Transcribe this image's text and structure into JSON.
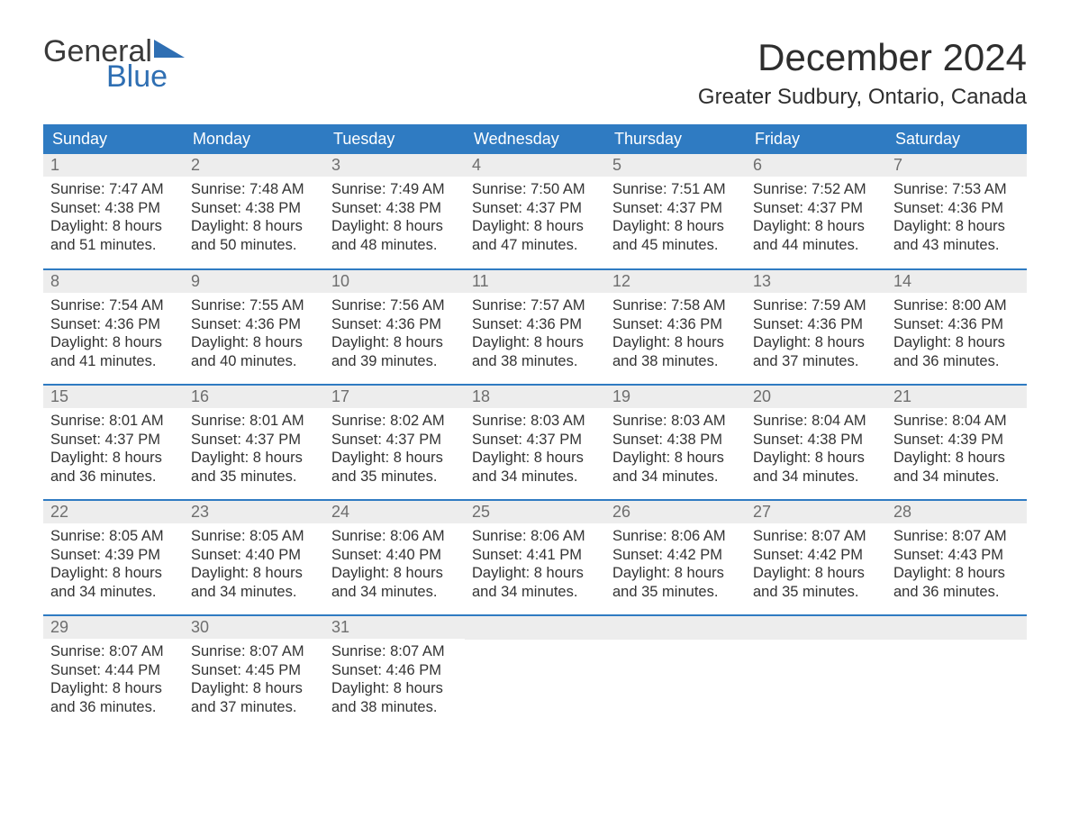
{
  "brand": {
    "word1": "General",
    "word2": "Blue",
    "accent_color": "#2f6fb3"
  },
  "title": "December 2024",
  "location": "Greater Sudbury, Ontario, Canada",
  "colors": {
    "header_bg": "#2f7bc2",
    "header_text": "#ffffff",
    "daynum_bg": "#ededed",
    "daynum_text": "#6e6e6e",
    "body_text": "#333333",
    "rule": "#2f7bc2"
  },
  "day_headers": [
    "Sunday",
    "Monday",
    "Tuesday",
    "Wednesday",
    "Thursday",
    "Friday",
    "Saturday"
  ],
  "weeks": [
    [
      {
        "n": "1",
        "sunrise": "Sunrise: 7:47 AM",
        "sunset": "Sunset: 4:38 PM",
        "d1": "Daylight: 8 hours",
        "d2": "and 51 minutes."
      },
      {
        "n": "2",
        "sunrise": "Sunrise: 7:48 AM",
        "sunset": "Sunset: 4:38 PM",
        "d1": "Daylight: 8 hours",
        "d2": "and 50 minutes."
      },
      {
        "n": "3",
        "sunrise": "Sunrise: 7:49 AM",
        "sunset": "Sunset: 4:38 PM",
        "d1": "Daylight: 8 hours",
        "d2": "and 48 minutes."
      },
      {
        "n": "4",
        "sunrise": "Sunrise: 7:50 AM",
        "sunset": "Sunset: 4:37 PM",
        "d1": "Daylight: 8 hours",
        "d2": "and 47 minutes."
      },
      {
        "n": "5",
        "sunrise": "Sunrise: 7:51 AM",
        "sunset": "Sunset: 4:37 PM",
        "d1": "Daylight: 8 hours",
        "d2": "and 45 minutes."
      },
      {
        "n": "6",
        "sunrise": "Sunrise: 7:52 AM",
        "sunset": "Sunset: 4:37 PM",
        "d1": "Daylight: 8 hours",
        "d2": "and 44 minutes."
      },
      {
        "n": "7",
        "sunrise": "Sunrise: 7:53 AM",
        "sunset": "Sunset: 4:36 PM",
        "d1": "Daylight: 8 hours",
        "d2": "and 43 minutes."
      }
    ],
    [
      {
        "n": "8",
        "sunrise": "Sunrise: 7:54 AM",
        "sunset": "Sunset: 4:36 PM",
        "d1": "Daylight: 8 hours",
        "d2": "and 41 minutes."
      },
      {
        "n": "9",
        "sunrise": "Sunrise: 7:55 AM",
        "sunset": "Sunset: 4:36 PM",
        "d1": "Daylight: 8 hours",
        "d2": "and 40 minutes."
      },
      {
        "n": "10",
        "sunrise": "Sunrise: 7:56 AM",
        "sunset": "Sunset: 4:36 PM",
        "d1": "Daylight: 8 hours",
        "d2": "and 39 minutes."
      },
      {
        "n": "11",
        "sunrise": "Sunrise: 7:57 AM",
        "sunset": "Sunset: 4:36 PM",
        "d1": "Daylight: 8 hours",
        "d2": "and 38 minutes."
      },
      {
        "n": "12",
        "sunrise": "Sunrise: 7:58 AM",
        "sunset": "Sunset: 4:36 PM",
        "d1": "Daylight: 8 hours",
        "d2": "and 38 minutes."
      },
      {
        "n": "13",
        "sunrise": "Sunrise: 7:59 AM",
        "sunset": "Sunset: 4:36 PM",
        "d1": "Daylight: 8 hours",
        "d2": "and 37 minutes."
      },
      {
        "n": "14",
        "sunrise": "Sunrise: 8:00 AM",
        "sunset": "Sunset: 4:36 PM",
        "d1": "Daylight: 8 hours",
        "d2": "and 36 minutes."
      }
    ],
    [
      {
        "n": "15",
        "sunrise": "Sunrise: 8:01 AM",
        "sunset": "Sunset: 4:37 PM",
        "d1": "Daylight: 8 hours",
        "d2": "and 36 minutes."
      },
      {
        "n": "16",
        "sunrise": "Sunrise: 8:01 AM",
        "sunset": "Sunset: 4:37 PM",
        "d1": "Daylight: 8 hours",
        "d2": "and 35 minutes."
      },
      {
        "n": "17",
        "sunrise": "Sunrise: 8:02 AM",
        "sunset": "Sunset: 4:37 PM",
        "d1": "Daylight: 8 hours",
        "d2": "and 35 minutes."
      },
      {
        "n": "18",
        "sunrise": "Sunrise: 8:03 AM",
        "sunset": "Sunset: 4:37 PM",
        "d1": "Daylight: 8 hours",
        "d2": "and 34 minutes."
      },
      {
        "n": "19",
        "sunrise": "Sunrise: 8:03 AM",
        "sunset": "Sunset: 4:38 PM",
        "d1": "Daylight: 8 hours",
        "d2": "and 34 minutes."
      },
      {
        "n": "20",
        "sunrise": "Sunrise: 8:04 AM",
        "sunset": "Sunset: 4:38 PM",
        "d1": "Daylight: 8 hours",
        "d2": "and 34 minutes."
      },
      {
        "n": "21",
        "sunrise": "Sunrise: 8:04 AM",
        "sunset": "Sunset: 4:39 PM",
        "d1": "Daylight: 8 hours",
        "d2": "and 34 minutes."
      }
    ],
    [
      {
        "n": "22",
        "sunrise": "Sunrise: 8:05 AM",
        "sunset": "Sunset: 4:39 PM",
        "d1": "Daylight: 8 hours",
        "d2": "and 34 minutes."
      },
      {
        "n": "23",
        "sunrise": "Sunrise: 8:05 AM",
        "sunset": "Sunset: 4:40 PM",
        "d1": "Daylight: 8 hours",
        "d2": "and 34 minutes."
      },
      {
        "n": "24",
        "sunrise": "Sunrise: 8:06 AM",
        "sunset": "Sunset: 4:40 PM",
        "d1": "Daylight: 8 hours",
        "d2": "and 34 minutes."
      },
      {
        "n": "25",
        "sunrise": "Sunrise: 8:06 AM",
        "sunset": "Sunset: 4:41 PM",
        "d1": "Daylight: 8 hours",
        "d2": "and 34 minutes."
      },
      {
        "n": "26",
        "sunrise": "Sunrise: 8:06 AM",
        "sunset": "Sunset: 4:42 PM",
        "d1": "Daylight: 8 hours",
        "d2": "and 35 minutes."
      },
      {
        "n": "27",
        "sunrise": "Sunrise: 8:07 AM",
        "sunset": "Sunset: 4:42 PM",
        "d1": "Daylight: 8 hours",
        "d2": "and 35 minutes."
      },
      {
        "n": "28",
        "sunrise": "Sunrise: 8:07 AM",
        "sunset": "Sunset: 4:43 PM",
        "d1": "Daylight: 8 hours",
        "d2": "and 36 minutes."
      }
    ],
    [
      {
        "n": "29",
        "sunrise": "Sunrise: 8:07 AM",
        "sunset": "Sunset: 4:44 PM",
        "d1": "Daylight: 8 hours",
        "d2": "and 36 minutes."
      },
      {
        "n": "30",
        "sunrise": "Sunrise: 8:07 AM",
        "sunset": "Sunset: 4:45 PM",
        "d1": "Daylight: 8 hours",
        "d2": "and 37 minutes."
      },
      {
        "n": "31",
        "sunrise": "Sunrise: 8:07 AM",
        "sunset": "Sunset: 4:46 PM",
        "d1": "Daylight: 8 hours",
        "d2": "and 38 minutes."
      },
      null,
      null,
      null,
      null
    ]
  ]
}
